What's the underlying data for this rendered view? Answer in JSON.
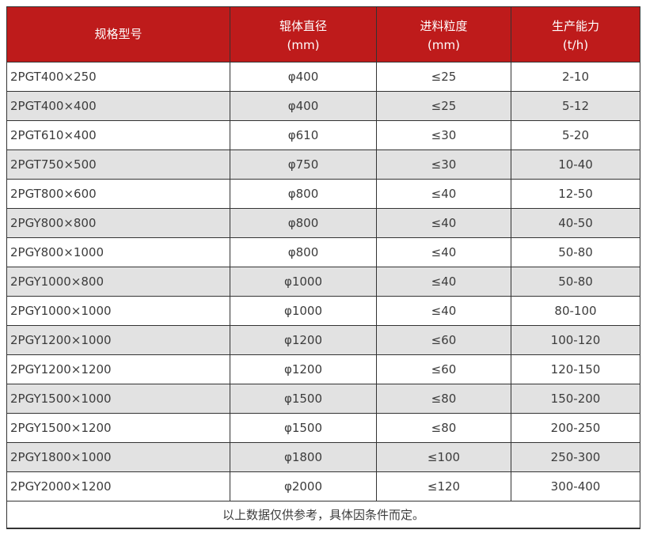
{
  "table": {
    "columns": [
      {
        "title": "规格型号",
        "unit": ""
      },
      {
        "title": "辊体直径",
        "unit": "(mm)"
      },
      {
        "title": "进料粒度",
        "unit": "(mm)"
      },
      {
        "title": "生产能力",
        "unit": "(t/h)"
      }
    ],
    "rows": [
      [
        "2PGT400×250",
        "φ400",
        "≤25",
        "2-10"
      ],
      [
        "2PGT400×400",
        "φ400",
        "≤25",
        "5-12"
      ],
      [
        "2PGT610×400",
        "φ610",
        "≤30",
        "5-20"
      ],
      [
        "2PGT750×500",
        "φ750",
        "≤30",
        "10-40"
      ],
      [
        "2PGT800×600",
        "φ800",
        "≤40",
        "12-50"
      ],
      [
        "2PGY800×800",
        "φ800",
        "≤40",
        "40-50"
      ],
      [
        "2PGY800×1000",
        "φ800",
        "≤40",
        "50-80"
      ],
      [
        "2PGY1000×800",
        "φ1000",
        "≤40",
        "50-80"
      ],
      [
        "2PGY1000×1000",
        "φ1000",
        "≤40",
        "80-100"
      ],
      [
        "2PGY1200×1000",
        "φ1200",
        "≤60",
        "100-120"
      ],
      [
        "2PGY1200×1200",
        "φ1200",
        "≤60",
        "120-150"
      ],
      [
        "2PGY1500×1000",
        "φ1500",
        "≤80",
        "150-200"
      ],
      [
        "2PGY1500×1200",
        "φ1500",
        "≤80",
        "200-250"
      ],
      [
        "2PGY1800×1000",
        "φ1800",
        "≤100",
        "250-300"
      ],
      [
        "2PGY2000×1200",
        "φ2000",
        "≤120",
        "300-400"
      ]
    ],
    "footer": "以上数据仅供参考，具体因条件而定。",
    "colors": {
      "header_bg": "#be1b1b",
      "header_text": "#ffffff",
      "row_alt_bg": "#e2e2e2",
      "body_text": "#3c3c3c",
      "border": "#333333"
    }
  }
}
